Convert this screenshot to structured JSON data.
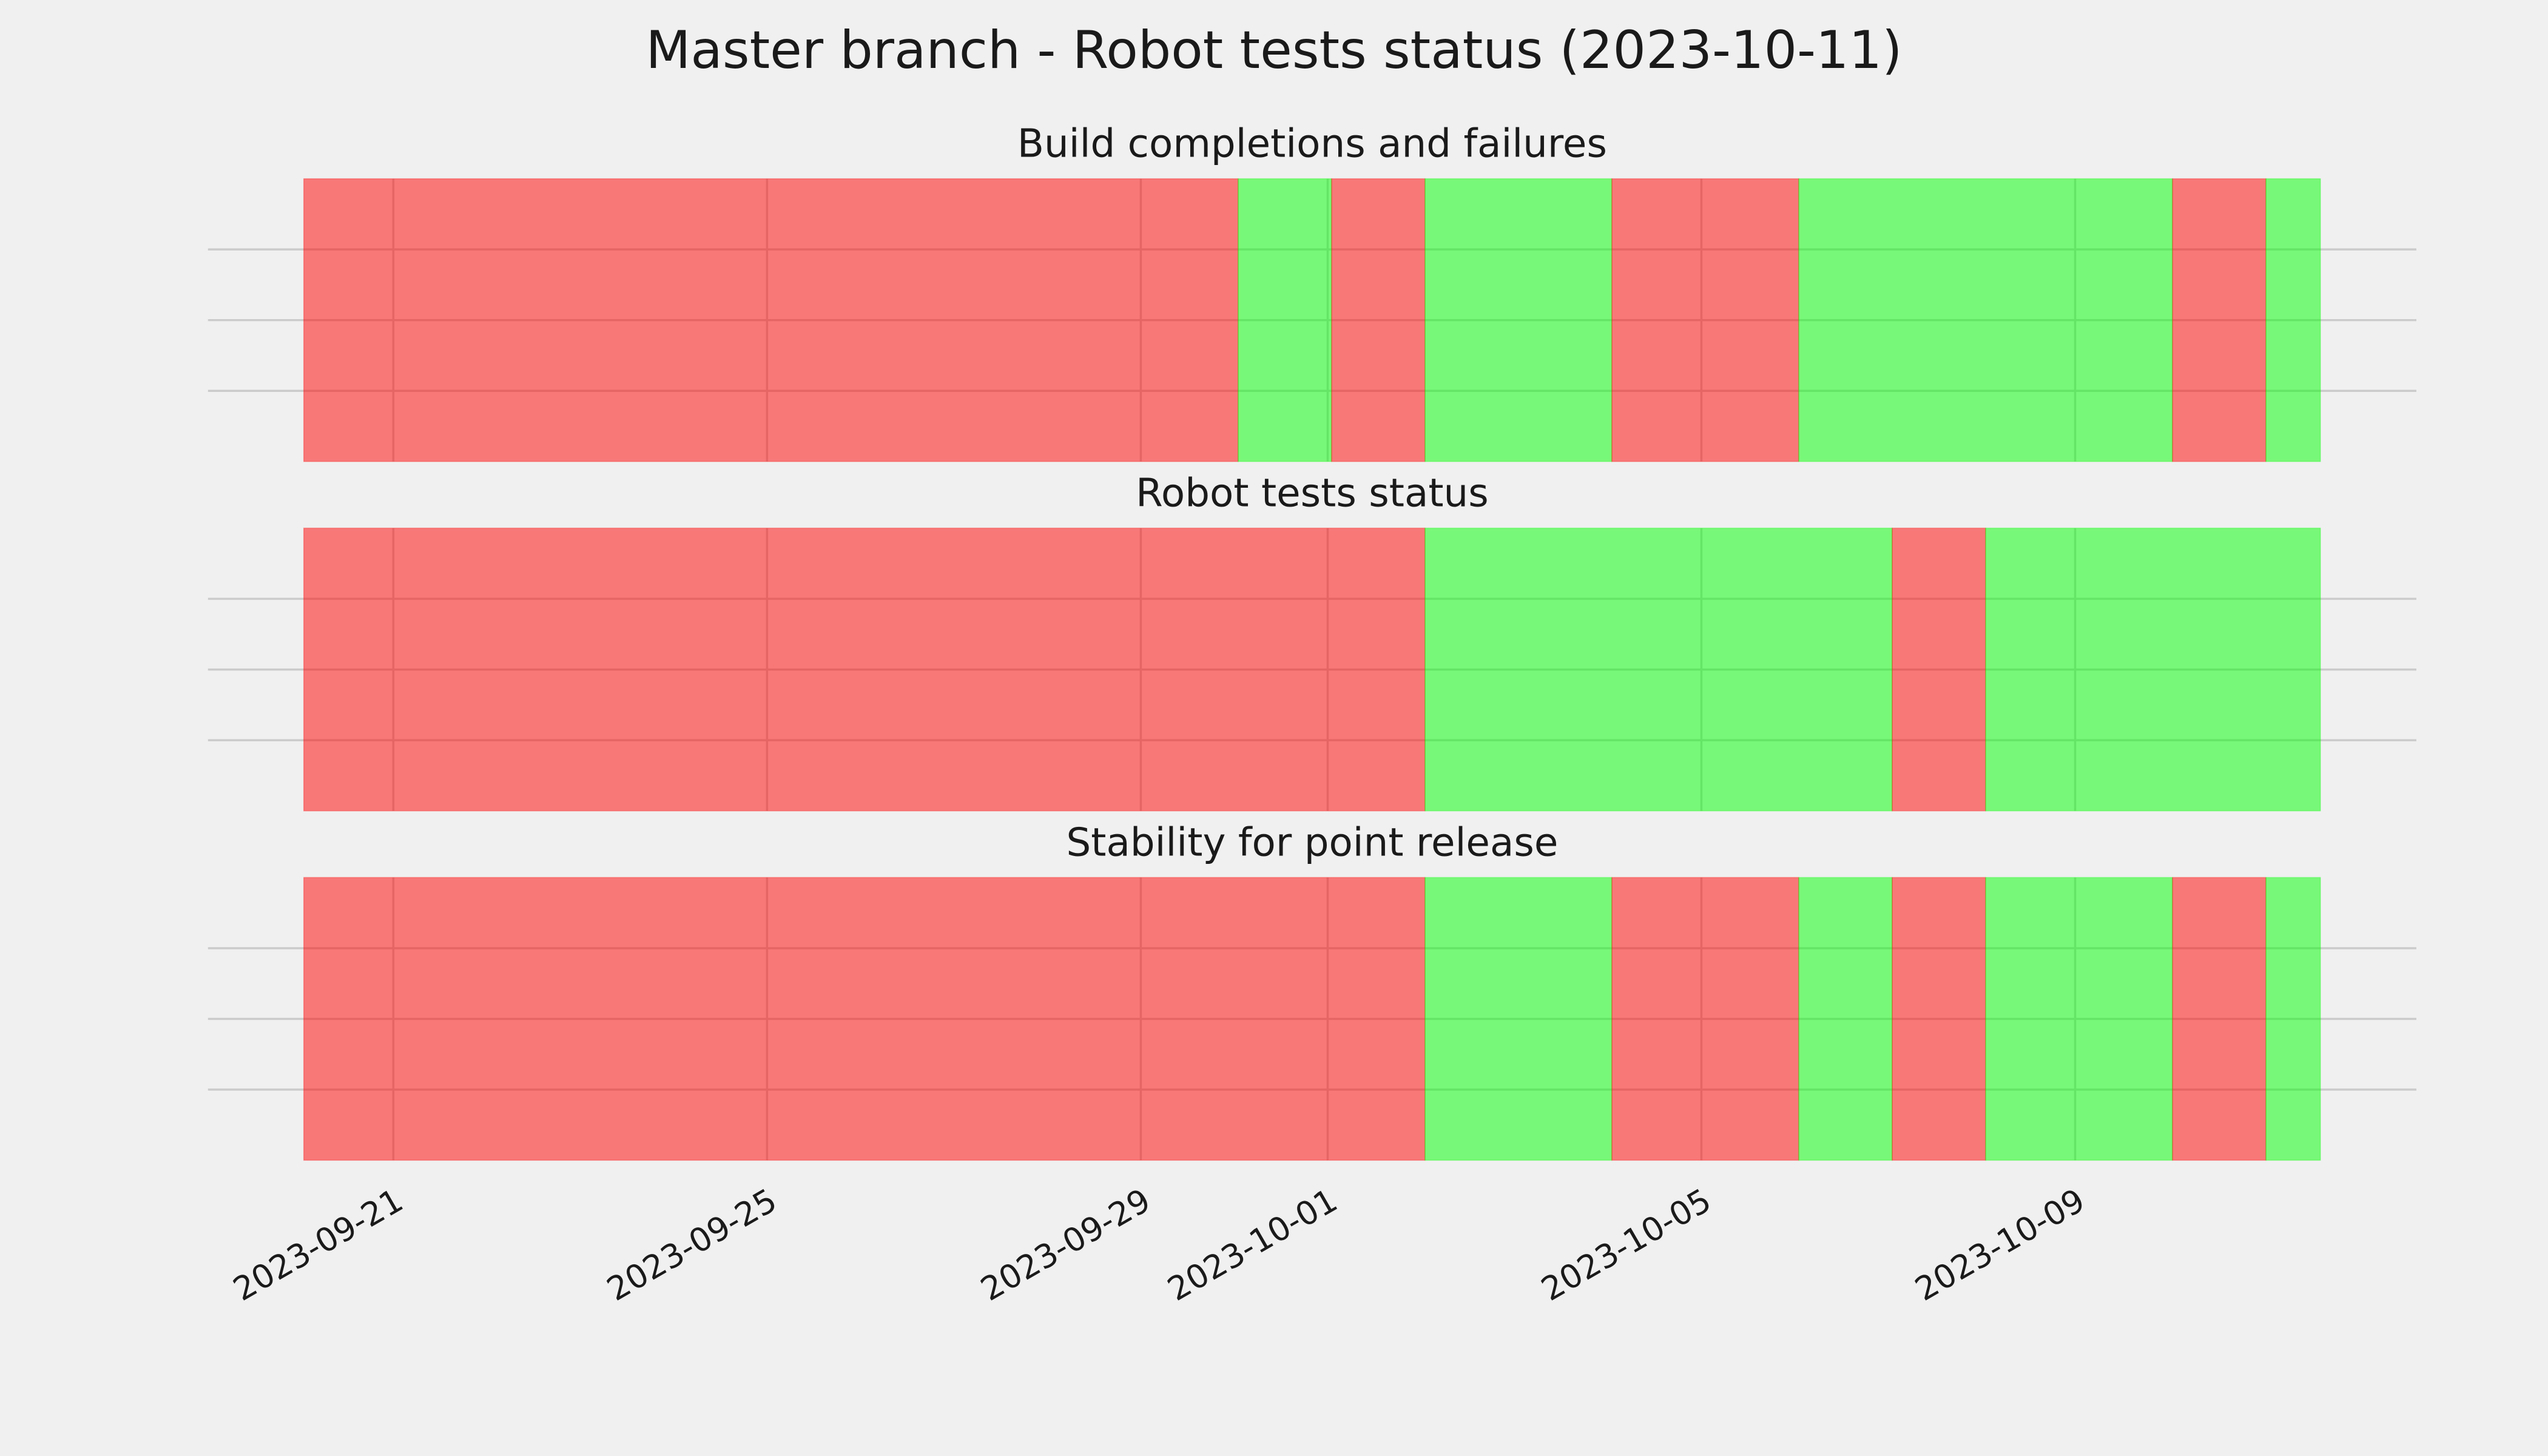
{
  "title": "Master branch - Robot tests status (2023-10-11)",
  "chart_data": [
    {
      "type": "timeline",
      "title": "Build completions and failures",
      "x": [
        "2023-09-20T01:00:00Z",
        "2023-09-30T01:00:00Z",
        "2023-10-01T01:00:00Z",
        "2023-10-02T01:00:00Z",
        "2023-10-04T01:00:00Z",
        "2023-10-06T01:00:00Z",
        "2023-10-10T01:00:00Z",
        "2023-10-11T01:00:00Z",
        "2023-10-11T15:00:00Z"
      ],
      "colors": [
        "#ff0000",
        "#00ff00",
        "#ff0000",
        "#00ff00",
        "#ff0000",
        "#00ff00",
        "#ff0000",
        "#00ff00"
      ],
      "xlim": [
        "2023-09-19T00:24:00Z",
        "2023-10-12T15:39:00Z"
      ],
      "xticks": [
        "2023-09-21",
        "2023-09-25",
        "2023-09-29",
        "2023-10-01",
        "2023-10-05",
        "2023-10-09"
      ],
      "ylim": [
        0,
        1
      ],
      "yticks": [
        0.25,
        0.5,
        0.75
      ],
      "grid": true
    },
    {
      "type": "timeline",
      "title": "Robot tests status",
      "x": [
        "2023-09-20T01:00:00Z",
        "2023-10-02T01:00:00Z",
        "2023-10-07T01:00:00Z",
        "2023-10-08T01:00:00Z",
        "2023-10-11T15:00:00Z"
      ],
      "colors": [
        "#ff0000",
        "#00ff00",
        "#ff0000",
        "#00ff00"
      ],
      "xlim": [
        "2023-09-19T00:24:00Z",
        "2023-10-12T15:39:00Z"
      ],
      "xticks": [
        "2023-09-21",
        "2023-09-25",
        "2023-09-29",
        "2023-10-01",
        "2023-10-05",
        "2023-10-09"
      ],
      "ylim": [
        0,
        1
      ],
      "yticks": [
        0.25,
        0.5,
        0.75
      ],
      "grid": true
    },
    {
      "type": "timeline",
      "title": "Stability for point release",
      "x": [
        "2023-09-20T01:00:00Z",
        "2023-10-02T01:00:00Z",
        "2023-10-04T01:00:00Z",
        "2023-10-06T01:00:00Z",
        "2023-10-07T01:00:00Z",
        "2023-10-08T01:00:00Z",
        "2023-10-10T01:00:00Z",
        "2023-10-11T01:00:00Z",
        "2023-10-11T15:00:00Z"
      ],
      "colors": [
        "#ff0000",
        "#00ff00",
        "#ff0000",
        "#00ff00",
        "#ff0000",
        "#00ff00",
        "#ff0000",
        "#00ff00"
      ],
      "xlim": [
        "2023-09-19T00:24:00Z",
        "2023-10-12T15:39:00Z"
      ],
      "xticks": [
        "2023-09-21",
        "2023-09-25",
        "2023-09-29",
        "2023-10-01",
        "2023-10-05",
        "2023-10-09"
      ],
      "ylim": [
        0,
        1
      ],
      "yticks": [
        0.25,
        0.5,
        0.75
      ],
      "grid": true
    }
  ]
}
